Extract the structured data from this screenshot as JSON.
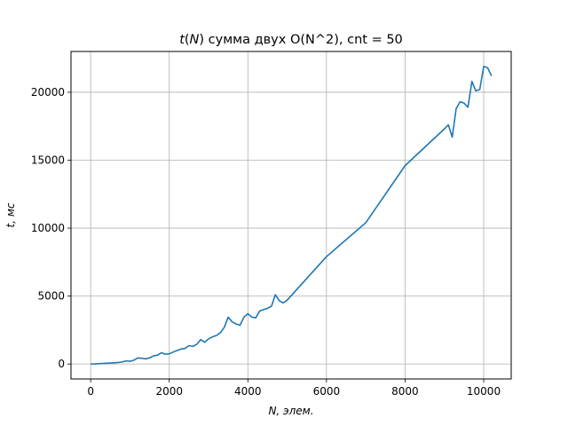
{
  "chart_data": {
    "type": "line",
    "title_var": "t",
    "title_arg": "N",
    "title_rest": " сумма двух O(N^2), cnt = 50",
    "xlabel": "N, элем.",
    "ylabel": "t, мс",
    "xlim": [
      -500,
      10700
    ],
    "ylim": [
      -1100,
      23000
    ],
    "x_ticks": [
      0,
      2000,
      4000,
      6000,
      8000,
      10000
    ],
    "y_ticks": [
      0,
      5000,
      10000,
      15000,
      20000
    ],
    "x_tick_labels": [
      "0",
      "2000",
      "4000",
      "6000",
      "8000",
      "10000"
    ],
    "y_tick_labels": [
      "0",
      "5000",
      "10000",
      "15000",
      "20000"
    ],
    "grid": true,
    "line_color": "#1f77b4",
    "series": [
      {
        "x": [
          0,
          100,
          200,
          300,
          400,
          500,
          600,
          700,
          800,
          900,
          1000,
          1100,
          1200,
          1300,
          1400,
          1500,
          1600,
          1700,
          1800,
          1900,
          2000,
          2100,
          2200,
          2300,
          2400,
          2500,
          2600,
          2700,
          2800,
          2900,
          3000,
          3100,
          3200,
          3300,
          3400,
          3500,
          3600,
          3700,
          3800,
          3900,
          4000,
          4100,
          4200,
          4300,
          4400,
          4500,
          4600,
          4700,
          4800,
          4900,
          5000,
          6000,
          7000,
          8000,
          9000,
          9100,
          9200,
          9300,
          9400,
          9500,
          9600,
          9700,
          9800,
          9900,
          10000,
          10100,
          10200
        ],
        "y": [
          0,
          5,
          20,
          40,
          55,
          70,
          90,
          110,
          150,
          230,
          200,
          280,
          450,
          420,
          380,
          450,
          600,
          650,
          830,
          720,
          750,
          880,
          1000,
          1100,
          1150,
          1350,
          1300,
          1450,
          1800,
          1600,
          1850,
          2000,
          2100,
          2300,
          2700,
          3450,
          3100,
          2950,
          2850,
          3450,
          3700,
          3450,
          3400,
          3900,
          4000,
          4100,
          4250,
          5100,
          4650,
          4500,
          4700,
          7900,
          10400,
          14600,
          17300,
          17600,
          16700,
          18800,
          19300,
          19200,
          18900,
          20800,
          20100,
          20200,
          21900,
          21800,
          21200
        ]
      }
    ]
  }
}
